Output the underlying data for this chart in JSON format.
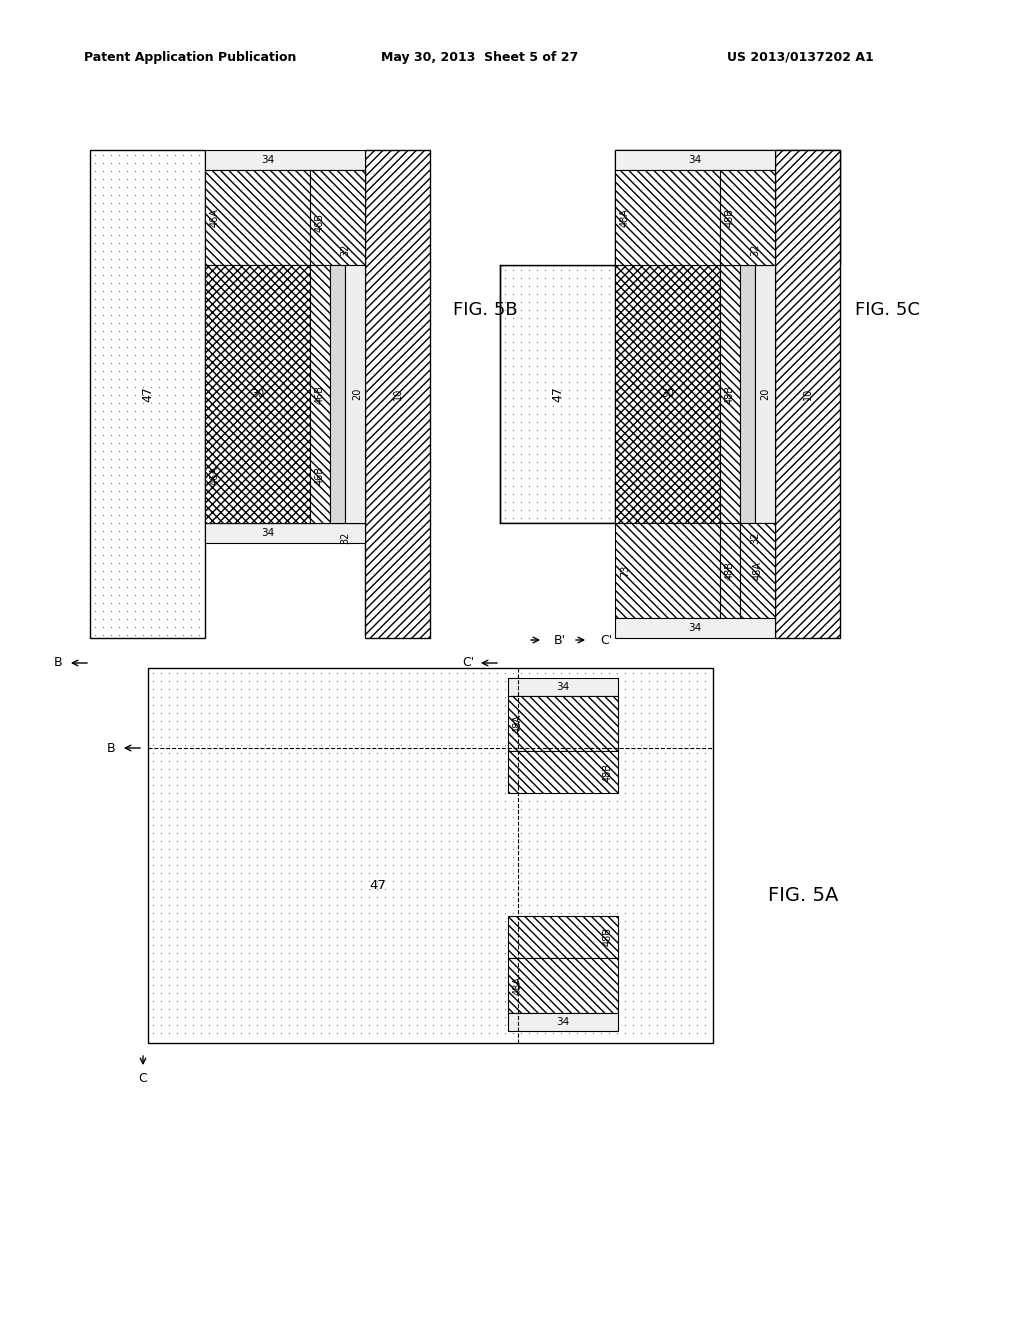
{
  "header_left": "Patent Application Publication",
  "header_mid": "May 30, 2013  Sheet 5 of 27",
  "header_right": "US 2013/0137202 A1",
  "fig5a_label": "FIG. 5A",
  "fig5b_label": "FIG. 5B",
  "fig5c_label": "FIG. 5C",
  "bg_color": "#ffffff"
}
